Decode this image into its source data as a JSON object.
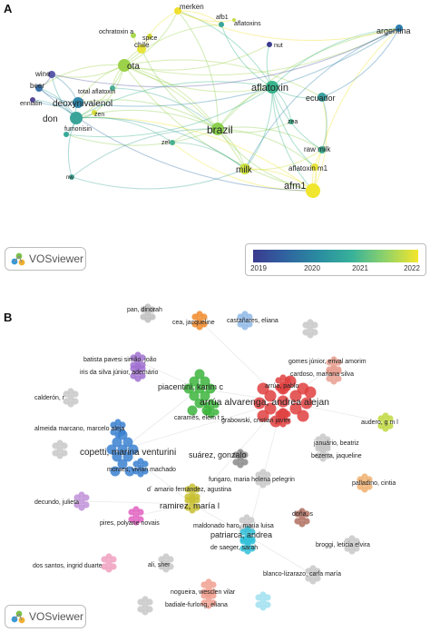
{
  "panel_a": {
    "letter": "A",
    "nodes": [
      {
        "id": "merken",
        "label": "merken",
        "color": "#f0e030"
      },
      {
        "id": "chile",
        "label": "chile",
        "color": "#e8e43a"
      },
      {
        "id": "ota",
        "label": "ota",
        "color": "#9bd24a"
      },
      {
        "id": "spice",
        "label": "spice",
        "color": "#d8e040"
      },
      {
        "id": "ochratoxin a",
        "label": "ochratoxin a",
        "color": "#a8d850"
      },
      {
        "id": "afb1",
        "label": "afb1",
        "color": "#3aa49a"
      },
      {
        "id": "aflatoxins",
        "label": "aflatoxins",
        "color": "#c8dc48"
      },
      {
        "id": "nut",
        "label": "nut",
        "color": "#3b3b8f"
      },
      {
        "id": "argentina",
        "label": "argentina",
        "color": "#2f7fb0"
      },
      {
        "id": "wine",
        "label": "wine",
        "color": "#5a5aa8"
      },
      {
        "id": "beer",
        "label": "beer",
        "color": "#3a70a8"
      },
      {
        "id": "enniatin",
        "label": "enniatin",
        "color": "#5a4a98"
      },
      {
        "id": "total aflatoxin",
        "label": "total aflatoxin",
        "color": "#4ab09a"
      },
      {
        "id": "deoxynivalenol",
        "label": "deoxynivalenol",
        "color": "#2f86a8"
      },
      {
        "id": "don",
        "label": "don",
        "color": "#3aa49a"
      },
      {
        "id": "zen",
        "label": "zen",
        "color": "#d8e040"
      },
      {
        "id": "fumonisin",
        "label": "fumonisin",
        "color": "#38a898"
      },
      {
        "id": "aflatoxin",
        "label": "aflatoxin",
        "color": "#38b48c"
      },
      {
        "id": "ecuador",
        "label": "ecuador",
        "color": "#3aa0a0"
      },
      {
        "id": "zea",
        "label": "zea",
        "color": "#48b896"
      },
      {
        "id": "brazil",
        "label": "brazil",
        "color": "#8cd050"
      },
      {
        "id": "zel",
        "label": "zel",
        "color": "#48b08e"
      },
      {
        "id": "raw milk",
        "label": "raw milk",
        "color": "#40ae92"
      },
      {
        "id": "milk",
        "label": "milk",
        "color": "#cce040"
      },
      {
        "id": "aflatoxin m1",
        "label": "aflatoxin m1",
        "color": "#e8e43a"
      },
      {
        "id": "afm1",
        "label": "afm1",
        "color": "#f0e62e"
      },
      {
        "id": "nw",
        "label": "nw",
        "color": "#48a898"
      }
    ],
    "logo_text": "VOSviewer",
    "scale_ticks": [
      "2019",
      "2020",
      "2021",
      "2022"
    ]
  },
  "panel_b": {
    "letter": "B",
    "labels": [
      {
        "text": "pan, dinorah",
        "color": "#bdbdbd"
      },
      {
        "text": "cea, jacqueline",
        "color": "#f08a2a"
      },
      {
        "text": "castañares, eliana",
        "color": "#8fb8e8"
      },
      {
        "text": "",
        "color": "#c8c8c8"
      },
      {
        "text": "batista pavesi simão, joão",
        "color": "#a070d0"
      },
      {
        "text": "iris da silva júnior, ademário",
        "color": "#a070d0"
      },
      {
        "text": "gomes júnior, erival amorim",
        "color": "#e8a090"
      },
      {
        "text": "cardoso, mariana silva",
        "color": "#e8a090"
      },
      {
        "text": "piacentini, karim c",
        "color": "#3cb43c"
      },
      {
        "text": "arrúa, pablo",
        "color": "#e04040"
      },
      {
        "text": "calderón, r",
        "color": "#c8c8c8"
      },
      {
        "text": "arrúa alvarenga, andrea alejan",
        "color": "#e04040"
      },
      {
        "text": "caramês, elem t s",
        "color": "#3cb43c"
      },
      {
        "text": "grabowski, cristian javier",
        "color": "#e04040"
      },
      {
        "text": "audero, g m l",
        "color": "#c0d840"
      },
      {
        "text": "almeida marcano, marcelo aleja",
        "color": "#3a80d0"
      },
      {
        "text": "",
        "color": "#c8c8c8"
      },
      {
        "text": "copetti, marina venturini",
        "color": "#3a80d0"
      },
      {
        "text": "suárez, gonzalo",
        "color": "#8a8a8a"
      },
      {
        "text": "januário, beatriz",
        "color": "#c8c8c8"
      },
      {
        "text": "bezerra, jaqueline",
        "color": "#c8c8c8"
      },
      {
        "text": "moraes, vivian machado",
        "color": "#3a80d0"
      },
      {
        "text": "fungaro, maria helena pelegrin",
        "color": "#c8c8c8"
      },
      {
        "text": "palladino, cintia",
        "color": "#f0b070"
      },
      {
        "text": "decundo, julieta",
        "color": "#c090d8"
      },
      {
        "text": "d´ amario fernández, agustina",
        "color": "#c8c030"
      },
      {
        "text": "ramirez, maría l",
        "color": "#c8c030"
      },
      {
        "text": "doña, s",
        "color": "#b07060"
      },
      {
        "text": "maldonado haro, maría luisa",
        "color": "#c8c8c8"
      },
      {
        "text": "pires, polyane novais",
        "color": "#e060c0"
      },
      {
        "text": "patriarca, andrea",
        "color": "#30c0d8"
      },
      {
        "text": "de saeger, sarah",
        "color": "#30c0d8"
      },
      {
        "text": "broggi, leticia elvira",
        "color": "#c8c8c8"
      },
      {
        "text": "dos santos, ingrid duarte",
        "color": "#f0a0c0"
      },
      {
        "text": "ali, sher",
        "color": "#c8c8c8"
      },
      {
        "text": "blanco-lizarazo, carla maría",
        "color": "#c8c8c8"
      },
      {
        "text": "nogueira, wesclen vilar",
        "color": "#f0a090"
      },
      {
        "text": "badiale-furlong, eliana",
        "color": "#f0a090"
      },
      {
        "text": "",
        "color": "#a0e0f0"
      },
      {
        "text": "",
        "color": "#c8c8c8"
      }
    ],
    "logo_text": "VOSviewer"
  }
}
